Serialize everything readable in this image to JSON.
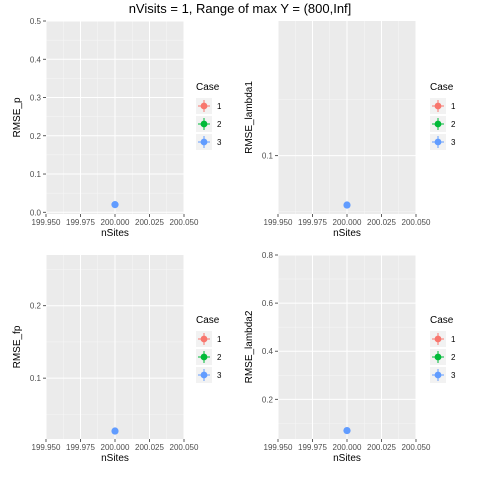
{
  "figure": {
    "title": "nVisits = 1, Range of max Y = (800,Inf]"
  },
  "legend": {
    "title": "Case",
    "entries": [
      {
        "label": "1",
        "color": "#F8766D"
      },
      {
        "label": "2",
        "color": "#00BA38"
      },
      {
        "label": "3",
        "color": "#619CFF"
      }
    ]
  },
  "colors": {
    "panel_bg": "#EBEBEB",
    "grid_major": "#FFFFFF",
    "tick_text": "#4D4D4D",
    "point": "#619CFF"
  },
  "chart_data": [
    {
      "type": "scatter",
      "xlabel": "nSites",
      "ylabel": "RMSE_p",
      "xlim": [
        199.95,
        200.05
      ],
      "ylim": [
        -0.0045,
        0.5
      ],
      "xticks": [
        "199.950",
        "199.975",
        "200.000",
        "200.025",
        "200.050"
      ],
      "xtick_values": [
        199.95,
        199.975,
        200.0,
        200.025,
        200.05
      ],
      "yticks": [
        "0.0",
        "0.1",
        "0.2",
        "0.3",
        "0.4",
        "0.5"
      ],
      "ytick_values": [
        0.0,
        0.1,
        0.2,
        0.3,
        0.4,
        0.5
      ],
      "series": [
        {
          "name": "3",
          "x": [
            200.0
          ],
          "y": [
            0.02
          ]
        }
      ]
    },
    {
      "type": "scatter",
      "xlabel": "nSites",
      "ylabel": "RMSE_lambda1",
      "xlim": [
        199.95,
        200.05
      ],
      "ylim": [
        0.048,
        0.22
      ],
      "xticks": [
        "199.950",
        "199.975",
        "200.000",
        "200.025",
        "200.050"
      ],
      "xtick_values": [
        199.95,
        199.975,
        200.0,
        200.025,
        200.05
      ],
      "yticks": [
        "0.1"
      ],
      "ytick_values": [
        0.1
      ],
      "series": [
        {
          "name": "3",
          "x": [
            200.0
          ],
          "y": [
            0.056
          ]
        }
      ]
    },
    {
      "type": "scatter",
      "xlabel": "nSites",
      "ylabel": "RMSE_fp",
      "xlim": [
        199.95,
        200.05
      ],
      "ylim": [
        0.016,
        0.27
      ],
      "xticks": [
        "199.950",
        "199.975",
        "200.000",
        "200.025",
        "200.050"
      ],
      "xtick_values": [
        199.95,
        199.975,
        200.0,
        200.025,
        200.05
      ],
      "yticks": [
        "0.1",
        "0.2"
      ],
      "ytick_values": [
        0.1,
        0.2
      ],
      "series": [
        {
          "name": "3",
          "x": [
            200.0
          ],
          "y": [
            0.027
          ]
        }
      ]
    },
    {
      "type": "scatter",
      "xlabel": "nSites",
      "ylabel": "RMSE_lambda2",
      "xlim": [
        199.95,
        200.05
      ],
      "ylim": [
        0.035,
        0.8
      ],
      "xticks": [
        "199.950",
        "199.975",
        "200.000",
        "200.025",
        "200.050"
      ],
      "xtick_values": [
        199.95,
        199.975,
        200.0,
        200.025,
        200.05
      ],
      "yticks": [
        "0.2",
        "0.4",
        "0.6",
        "0.8"
      ],
      "ytick_values": [
        0.2,
        0.4,
        0.6,
        0.8
      ],
      "series": [
        {
          "name": "3",
          "x": [
            200.0
          ],
          "y": [
            0.07
          ]
        }
      ]
    }
  ]
}
